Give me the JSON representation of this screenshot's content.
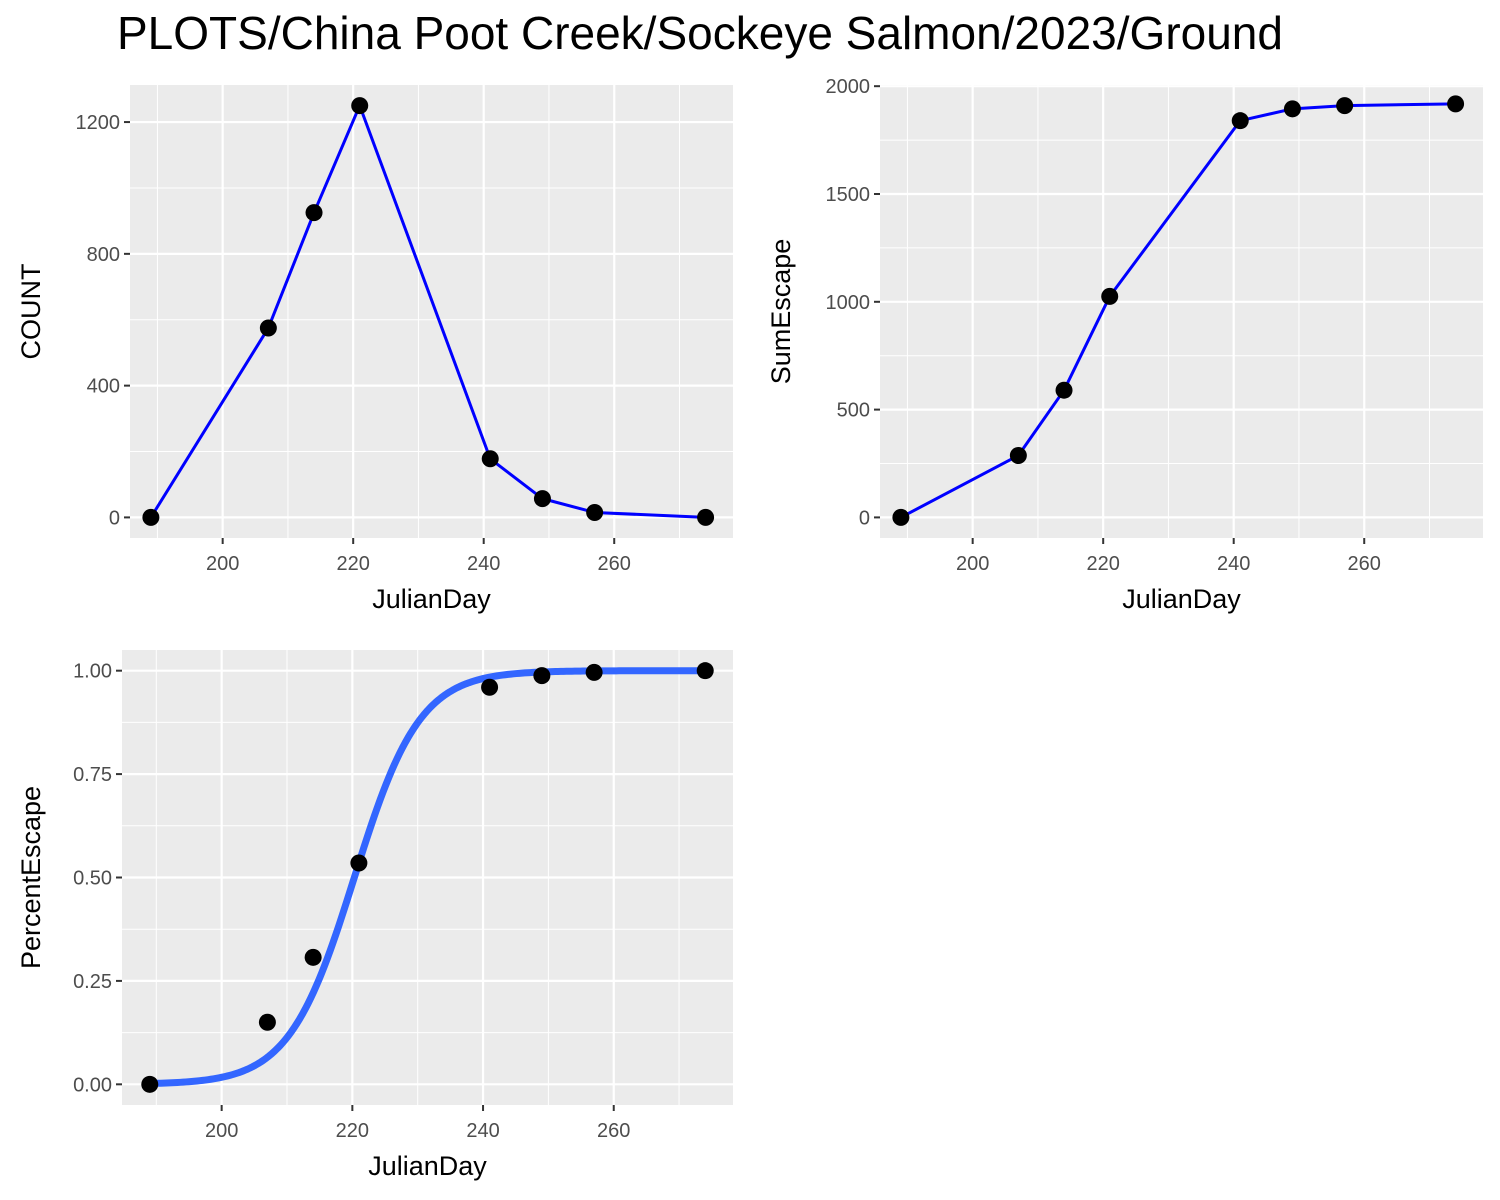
{
  "title": "PLOTS/China Poot Creek/Sockeye Salmon/2023/Ground",
  "colors": {
    "panel_bg": "#ebebeb",
    "grid": "#ffffff",
    "line": "#0000ff",
    "smooth": "#3366ff",
    "point": "#000000"
  },
  "chart_data": [
    {
      "type": "line",
      "xlabel": "JulianDay",
      "ylabel": "COUNT",
      "xlim": [
        185.8,
        278.2
      ],
      "ylim": [
        -62.5,
        1312.5
      ],
      "xticks": [
        200,
        220,
        240,
        260
      ],
      "yticks": [
        0,
        400,
        800,
        1200
      ],
      "ytick_labels": [
        "0",
        "400",
        "800",
        "1200"
      ],
      "grid": true,
      "series": [
        {
          "x": [
            189,
            207,
            214,
            221,
            241,
            249,
            257,
            274
          ],
          "y": [
            0,
            575,
            925,
            1250,
            178,
            57,
            15,
            0
          ]
        }
      ]
    },
    {
      "type": "line",
      "xlabel": "JulianDay",
      "ylabel": "SumEscape",
      "xlim": [
        185.8,
        278.2
      ],
      "ylim": [
        -95.5,
        2005.5
      ],
      "xticks": [
        200,
        220,
        240,
        260
      ],
      "yticks": [
        0,
        500,
        1000,
        1500,
        2000
      ],
      "ytick_labels": [
        "0",
        "500",
        "1000",
        "1500",
        "2000"
      ],
      "grid": true,
      "series": [
        {
          "x": [
            189,
            207,
            214,
            221,
            241,
            249,
            257,
            274
          ],
          "y": [
            0,
            287,
            590,
            1025,
            1840,
            1895,
            1910,
            1918
          ]
        }
      ]
    },
    {
      "type": "scatter",
      "xlabel": "JulianDay",
      "ylabel": "PercentEscape",
      "xlim": [
        184.75,
        278.25
      ],
      "ylim": [
        -0.05,
        1.05
      ],
      "xticks": [
        200,
        220,
        240,
        260
      ],
      "yticks": [
        0,
        0.25,
        0.5,
        0.75,
        1
      ],
      "ytick_labels": [
        "0.00",
        "0.25",
        "0.50",
        "0.75",
        "1.00"
      ],
      "grid": true,
      "series": [
        {
          "x": [
            189,
            207,
            214,
            221,
            241,
            249,
            257,
            274
          ],
          "y": [
            0,
            0.15,
            0.307,
            0.535,
            0.96,
            0.988,
            0.996,
            1.0
          ]
        }
      ],
      "smooth": {
        "type": "logistic",
        "midpoint": 220.3,
        "scale": 5.0
      }
    }
  ]
}
